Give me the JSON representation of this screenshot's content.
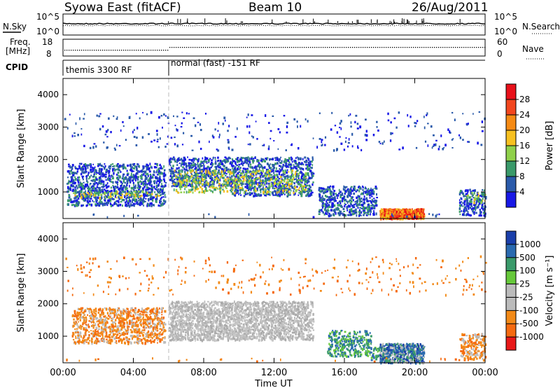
{
  "header": {
    "station": "Syowa East (fitACF)",
    "beam": "Beam 10",
    "date": "26/Aug/2011"
  },
  "noise_panel": {
    "left_label": "N.Sky",
    "left_ticks": [
      "10^5",
      "10^0"
    ],
    "right_label": "N.Search",
    "right_ticks": [
      "10^5",
      "10^0"
    ]
  },
  "freq_panel": {
    "left_label_line1": "Freq.",
    "left_label_line2": "[MHz]",
    "left_ticks": [
      "18",
      "8"
    ],
    "right_label": "Nave",
    "right_ticks": [
      "60",
      "0"
    ]
  },
  "cpid_panel": {
    "label": "CPID",
    "modes": [
      {
        "name": "themis 3300 RF",
        "start_hour": 0
      },
      {
        "name": "normal (fast) -151 RF",
        "start_hour": 6
      }
    ]
  },
  "time_axis": {
    "label": "Time UT",
    "ticks": [
      "00:00",
      "04:00",
      "08:00",
      "12:00",
      "16:00",
      "20:00",
      "00:00"
    ]
  },
  "power_colorbar": {
    "label": "Power [dB]",
    "ticks": [
      "28",
      "24",
      "20",
      "16",
      "12",
      "8",
      "4"
    ],
    "colors": [
      "#e8101a",
      "#f2461e",
      "#f58a14",
      "#f6c020",
      "#8fd04a",
      "#3a9a6a",
      "#2a5aaa",
      "#1818e6"
    ]
  },
  "velocity_colorbar": {
    "label": "Velocity [m s⁻¹]",
    "ticks": [
      "1000",
      "500",
      "100",
      "25",
      "-25",
      "-100",
      "-500",
      "-1000"
    ],
    "colors": [
      "#1a3faa",
      "#2a6ab0",
      "#3a9a6a",
      "#66c83a",
      "#bbbbbb",
      "#bbbbbb",
      "#f28a18",
      "#f56a10",
      "#e81818"
    ]
  },
  "chart_data": [
    {
      "type": "heatmap",
      "title": "",
      "xlabel": "Time UT",
      "ylabel": "Slant Range [km]",
      "ylim": [
        180,
        4500
      ],
      "xlim": [
        0,
        24
      ],
      "yticks": [
        "1000",
        "2000",
        "3000",
        "4000"
      ],
      "colorbar": "Power [dB]",
      "regions": [
        {
          "t": [
            0.2,
            5.8
          ],
          "r": [
            850,
            1050
          ],
          "value": "8-16 dB"
        },
        {
          "t": [
            6.0,
            9.5
          ],
          "r": [
            1200,
            2100
          ],
          "value": "8-20 dB"
        },
        {
          "t": [
            9.5,
            14.2
          ],
          "r": [
            900,
            2100
          ],
          "value": "8-20 dB"
        },
        {
          "t": [
            18.0,
            20.5
          ],
          "r": [
            200,
            500
          ],
          "value": "20-28 dB"
        },
        {
          "t": [
            22.5,
            24.0
          ],
          "r": [
            300,
            1100
          ],
          "value": "8-16 dB"
        }
      ]
    },
    {
      "type": "heatmap",
      "title": "",
      "xlabel": "Time UT",
      "ylabel": "Slant Range [km]",
      "ylim": [
        180,
        4500
      ],
      "xlim": [
        0,
        24
      ],
      "yticks": [
        "1000",
        "2000",
        "3000",
        "4000"
      ],
      "colorbar": "Velocity [m s⁻¹]",
      "regions": [
        {
          "t": [
            0.5,
            5.8
          ],
          "r": [
            800,
            1900
          ],
          "value": "-100 to -500 m/s"
        },
        {
          "t": [
            6.0,
            14.2
          ],
          "r": [
            900,
            2100
          ],
          "value": "-25 to 25 m/s"
        },
        {
          "t": [
            15.0,
            17.5
          ],
          "r": [
            400,
            1200
          ],
          "value": "100 to 500 m/s"
        },
        {
          "t": [
            18.0,
            20.5
          ],
          "r": [
            200,
            800
          ],
          "value": "500 to 1000 m/s"
        },
        {
          "t": [
            22.5,
            24.0
          ],
          "r": [
            300,
            1100
          ],
          "value": "-100 to -500 m/s"
        }
      ]
    }
  ]
}
